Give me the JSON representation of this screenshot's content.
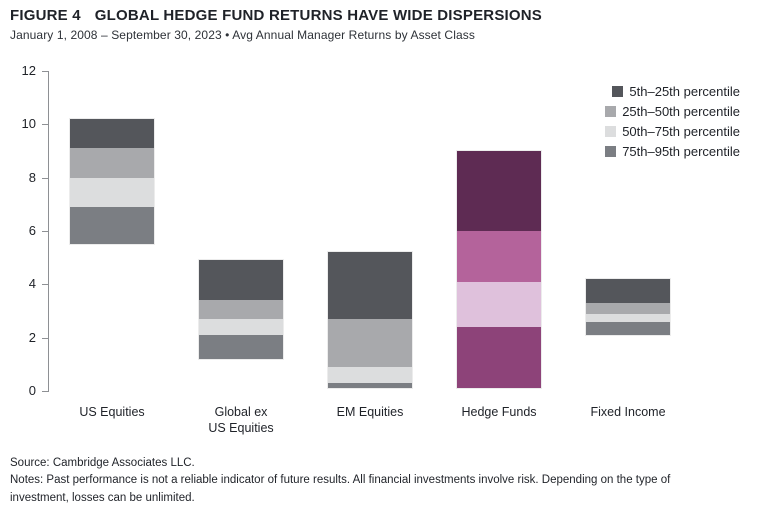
{
  "header": {
    "figure_label": "FIGURE 4",
    "title": "GLOBAL HEDGE FUND RETURNS HAVE WIDE DISPERSIONS",
    "subtitle": "January 1, 2008 – September 30, 2023 • Avg Annual Manager Returns by Asset Class"
  },
  "chart_data": {
    "type": "bar",
    "subtype": "stacked-percentile-range-bars",
    "title": "GLOBAL HEDGE FUND RETURNS HAVE WIDE DISPERSIONS",
    "subtitle": "January 1, 2008 – September 30, 2023 • Avg Annual Manager Returns by Asset Class",
    "xlabel": "",
    "ylabel": "",
    "ylim": [
      0,
      12
    ],
    "yticks": [
      0,
      2,
      4,
      6,
      8,
      10,
      12
    ],
    "grid": false,
    "legend_position": "top-right",
    "categories": [
      "US Equities",
      "Global ex\nUS Equities",
      "EM Equities",
      "Hedge Funds",
      "Fixed Income"
    ],
    "segment_order_bottom_to_top": [
      "75th–95th percentile",
      "50th–75th percentile",
      "25th–50th percentile",
      "5th–25th percentile"
    ],
    "bars": [
      {
        "category": "US Equities",
        "palette": "gray",
        "levels": [
          5.5,
          6.9,
          8.0,
          9.1,
          10.2
        ]
      },
      {
        "category": "Global ex US Equities",
        "palette": "gray",
        "levels": [
          1.2,
          2.1,
          2.7,
          3.4,
          4.9
        ]
      },
      {
        "category": "EM Equities",
        "palette": "gray",
        "levels": [
          0.1,
          0.3,
          0.9,
          2.7,
          5.2
        ]
      },
      {
        "category": "Hedge Funds",
        "palette": "purple",
        "levels": [
          0.1,
          2.4,
          4.1,
          6.0,
          9.0
        ]
      },
      {
        "category": "Fixed Income",
        "palette": "gray",
        "levels": [
          2.1,
          2.6,
          2.9,
          3.3,
          4.2
        ]
      }
    ],
    "palettes": {
      "gray": {
        "p5_25": "#54565B",
        "p25_50": "#A8A9AC",
        "p50_75": "#DCDDDE",
        "p75_95": "#7B7E83"
      },
      "purple": {
        "p5_25": "#5E2B53",
        "p25_50": "#B4639B",
        "p50_75": "#DFC1DC",
        "p75_95": "#8D4379"
      }
    }
  },
  "legend": {
    "items": [
      {
        "label": "5th–25th percentile",
        "color": "#54565B"
      },
      {
        "label": "25th–50th percentile",
        "color": "#A8A9AC"
      },
      {
        "label": "50th–75th percentile",
        "color": "#DCDDDE"
      },
      {
        "label": "75th–95th percentile",
        "color": "#7B7E83"
      }
    ]
  },
  "footer": {
    "source": "Source: Cambridge Associates LLC.",
    "notes": "Notes: Past performance is not a reliable indicator of future results. All financial investments involve risk. Depending on the type of investment, losses can be unlimited."
  }
}
